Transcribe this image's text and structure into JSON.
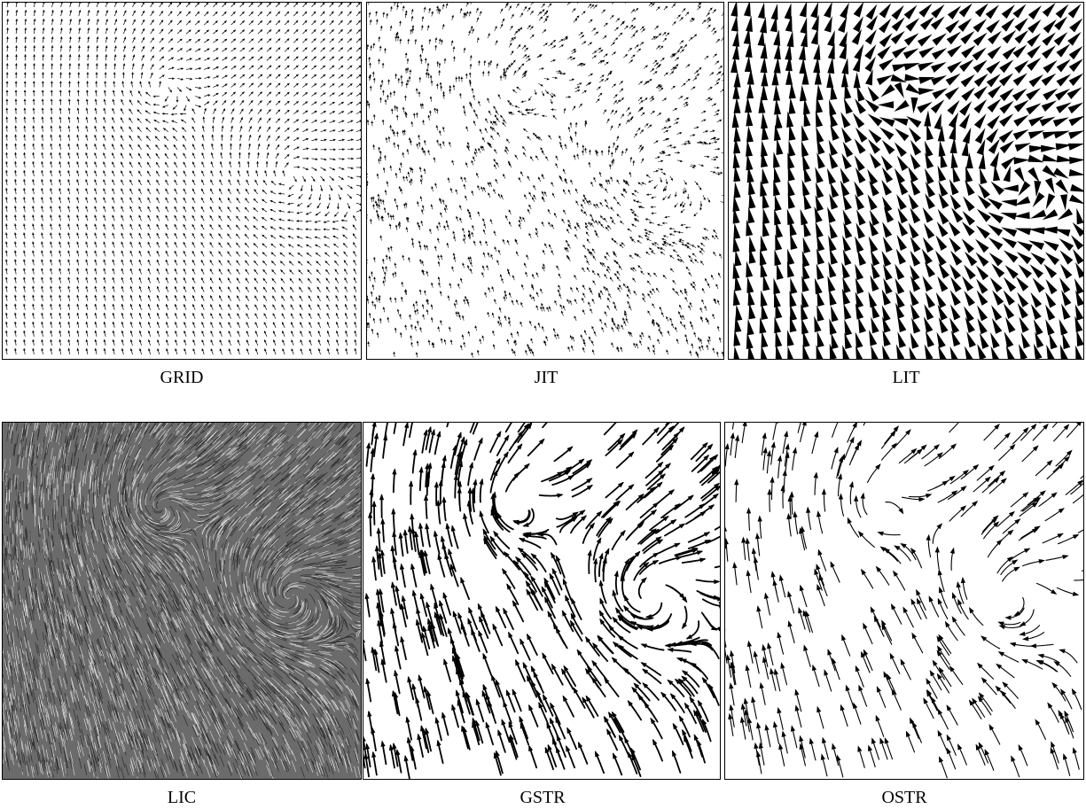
{
  "panels": [
    {
      "caption": "GRID",
      "technique": "regular-grid-arrows"
    },
    {
      "caption": "JIT",
      "technique": "jittered-grid-arrows"
    },
    {
      "caption": "LIT",
      "technique": "layered-icon-triangles"
    },
    {
      "caption": "LIC",
      "technique": "line-integral-convolution"
    },
    {
      "caption": "GSTR",
      "technique": "grid-streamlines"
    },
    {
      "caption": "OSTR",
      "technique": "optimized-streamlines"
    }
  ],
  "colors": {
    "ink": "#000000",
    "background": "#ffffff",
    "lic_base": "#6b6b6b"
  }
}
